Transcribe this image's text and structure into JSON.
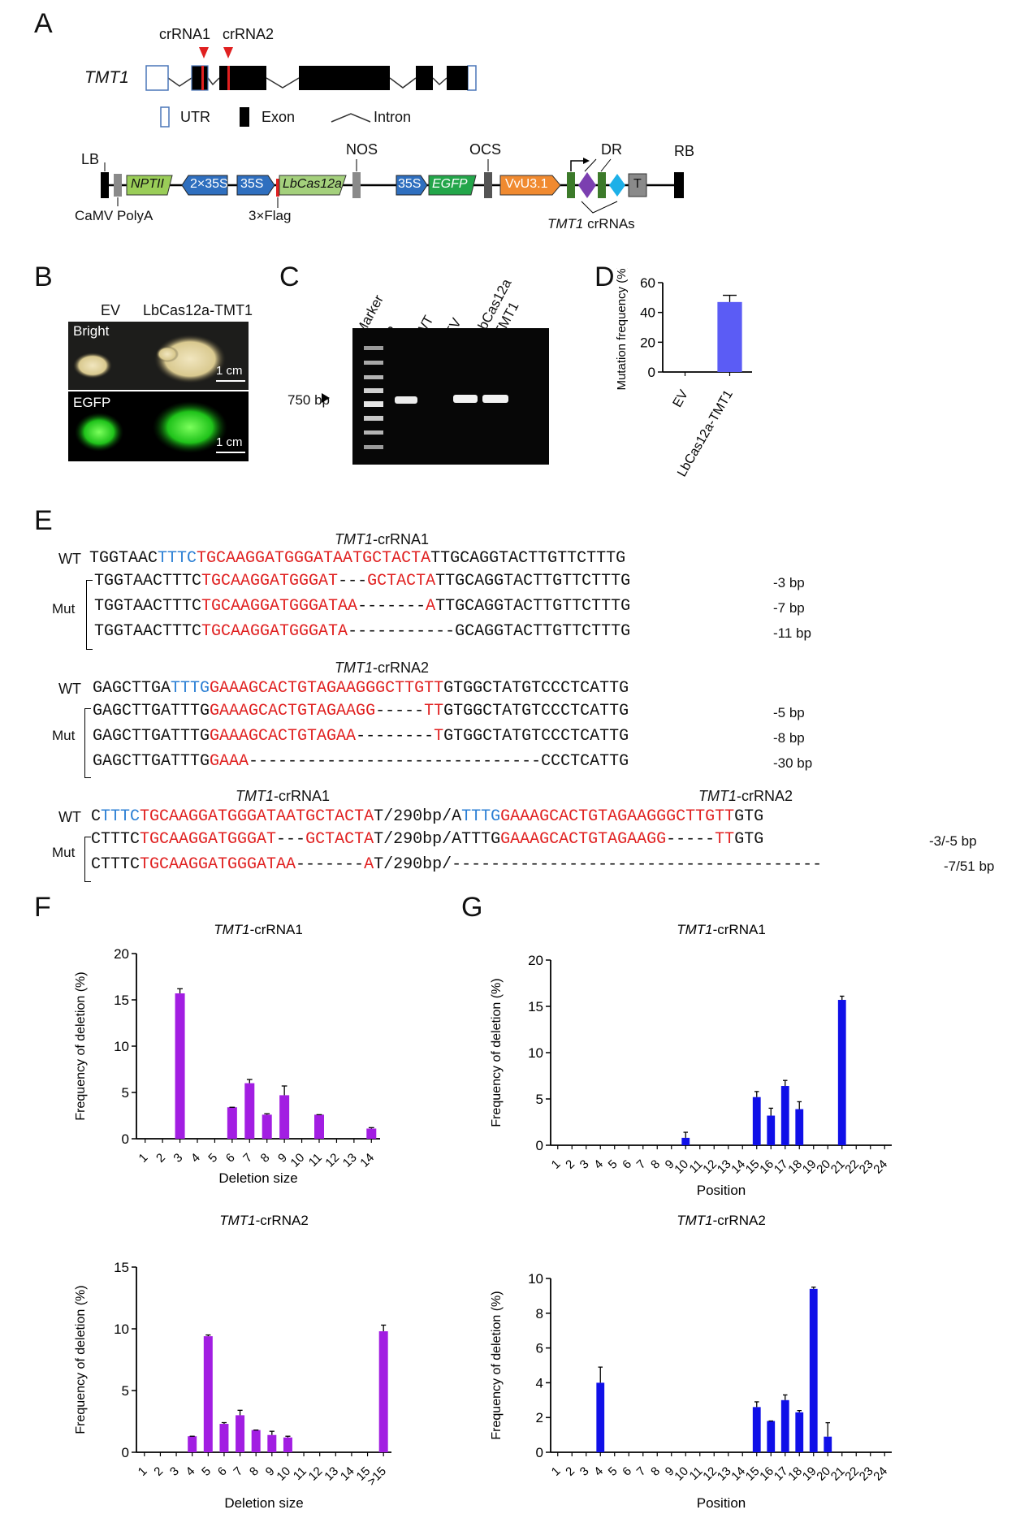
{
  "panels": [
    "A",
    "B",
    "C",
    "D",
    "E",
    "F",
    "G"
  ],
  "panelA": {
    "gene": "TMT1",
    "cr1": "crRNA1",
    "cr2": "crRNA2",
    "legend": {
      "utr": "UTR",
      "exon": "Exon",
      "intron": "Intron"
    },
    "construct": {
      "lb": "LB",
      "rb": "RB",
      "nos": "NOS",
      "ocs": "OCS",
      "dr": "DR",
      "nptii": "NPTII",
      "p2x35s": "2×35S",
      "p35s_a": "35S",
      "cas": "LbCas12a",
      "p35s_b": "35S",
      "egfp": "EGFP",
      "vvu": "VvU3.1",
      "t": "T",
      "camv": "CaMV PolyA",
      "flag": "3×Flag",
      "crrnas_gene": "TMT1",
      "crrnas": "crRNAs"
    }
  },
  "panelB": {
    "ev": "EV",
    "cas": "LbCas12a-TMT1",
    "bright": "Bright",
    "egfp": "EGFP",
    "scale": "1 cm"
  },
  "panelC": {
    "lanes": [
      "Marker",
      "P",
      "WT",
      "EV",
      "LbCas12a",
      "-TMT1"
    ],
    "size": "750 bp"
  },
  "panelD": {
    "chart_data": {
      "type": "bar",
      "categories": [
        "EV",
        "LbCas12a-TMT1"
      ],
      "values": [
        0,
        47
      ],
      "errors": [
        0,
        4.5
      ],
      "ylabel": "Mutation frequency (%)",
      "ylim": [
        0,
        60
      ],
      "yticks": [
        0,
        20,
        40,
        60
      ],
      "color": "#5b5cf5"
    }
  },
  "panelE": {
    "wt": "WT",
    "mut": "Mut",
    "block1": {
      "title_gene": "TMT1",
      "title_rna": "-crRNA1",
      "wt_seq": [
        [
          "k",
          "TGGTAAC"
        ],
        [
          "b",
          "TTTC"
        ],
        [
          "r",
          "TGCAAGGATGGGATAATGCTACTA"
        ],
        [
          "k",
          "TTGCAGGTACTTGTTCTTTG"
        ]
      ],
      "muts": [
        {
          "seq": [
            [
              "k",
              "TGGTAACTTTC"
            ],
            [
              "r",
              "TGCAAGGATGGGAT"
            ],
            [
              "k",
              "---"
            ],
            [
              "r",
              "GCTACTA"
            ],
            [
              "k",
              "TTGCAGGTACTTGTTCTTTG"
            ]
          ],
          "note": "-3 bp"
        },
        {
          "seq": [
            [
              "k",
              "TGGTAACTTTC"
            ],
            [
              "r",
              "TGCAAGGATGGGATAA"
            ],
            [
              "k",
              "-------"
            ],
            [
              "r",
              "A"
            ],
            [
              "k",
              "TTGCAGGTACTTGTTCTTTG"
            ]
          ],
          "note": "-7 bp"
        },
        {
          "seq": [
            [
              "k",
              "TGGTAACTTTC"
            ],
            [
              "r",
              "TGCAAGGATGGGATA"
            ],
            [
              "k",
              "-----------GCAGGTACTTGTTCTTTG"
            ]
          ],
          "note": "-11 bp"
        }
      ]
    },
    "block2": {
      "title_gene": "TMT1",
      "title_rna": "-crRNA2",
      "wt_seq": [
        [
          "k",
          "GAGCTTGA"
        ],
        [
          "b",
          "TTTG"
        ],
        [
          "r",
          "GAAAGCACTGTAGAAGGGCTTGTT"
        ],
        [
          "k",
          "GTGGCTATGTCCCTCATTG"
        ]
      ],
      "muts": [
        {
          "seq": [
            [
              "k",
              "GAGCTTGATTTG"
            ],
            [
              "r",
              "GAAAGCACTGTAGAAGG"
            ],
            [
              "k",
              "-----"
            ],
            [
              "r",
              "TT"
            ],
            [
              "k",
              "GTGGCTATGTCCCTCATTG"
            ]
          ],
          "note": "-5 bp"
        },
        {
          "seq": [
            [
              "k",
              "GAGCTTGATTTG"
            ],
            [
              "r",
              "GAAAGCACTGTAGAA"
            ],
            [
              "k",
              "--------"
            ],
            [
              "r",
              "T"
            ],
            [
              "k",
              "GTGGCTATGTCCCTCATTG"
            ]
          ],
          "note": "-8 bp"
        },
        {
          "seq": [
            [
              "k",
              "GAGCTTGATTTG"
            ],
            [
              "r",
              "GAAA"
            ],
            [
              "k",
              "------------------------------CCCTCATTG"
            ]
          ],
          "note": "-30 bp"
        }
      ]
    },
    "block3": {
      "title1_gene": "TMT1",
      "title1_rna": "-crRNA1",
      "title2_gene": "TMT1",
      "title2_rna": "-crRNA2",
      "wt_seq": [
        [
          "k",
          "C"
        ],
        [
          "b",
          "TTTC"
        ],
        [
          "r",
          "TGCAAGGATGGGATAATGCTACTA"
        ],
        [
          "k",
          "T/290bp/A"
        ],
        [
          "b",
          "TTTG"
        ],
        [
          "r",
          "GAAAGCACTGTAGAAGGGCTTGTT"
        ],
        [
          "k",
          "GTG"
        ]
      ],
      "muts": [
        {
          "seq": [
            [
              "k",
              "CTTTC"
            ],
            [
              "r",
              "TGCAAGGATGGGAT"
            ],
            [
              "k",
              "---"
            ],
            [
              "r",
              "GCTACTA"
            ],
            [
              "k",
              "T/290bp/ATTTG"
            ],
            [
              "r",
              "GAAAGCACTGTAGAAGG"
            ],
            [
              "k",
              "-----"
            ],
            [
              "r",
              "TT"
            ],
            [
              "k",
              "GTG"
            ]
          ],
          "note": "-3/-5 bp"
        },
        {
          "seq": [
            [
              "k",
              "CTTTC"
            ],
            [
              "r",
              "TGCAAGGATGGGATAA"
            ],
            [
              "k",
              "-------"
            ],
            [
              "r",
              "A"
            ],
            [
              "k",
              "T/290bp/--------------------------------------"
            ]
          ],
          "note": "-7/51 bp"
        }
      ]
    }
  },
  "panelF": {
    "chart_data": [
      {
        "type": "bar",
        "title_gene": "TMT1",
        "title_rna": "-crRNA1",
        "categories": [
          "1",
          "2",
          "3",
          "4",
          "5",
          "6",
          "7",
          "8",
          "9",
          "10",
          "11",
          "12",
          "13",
          "14"
        ],
        "values": [
          0,
          0,
          15.7,
          0,
          0,
          3.4,
          6,
          2.6,
          4.7,
          0,
          2.6,
          0,
          0,
          1.1
        ],
        "errors": [
          0,
          0,
          0.5,
          0,
          0,
          0,
          0.4,
          0.1,
          1,
          0,
          0,
          0,
          0,
          0.1
        ],
        "xlabel": "Deletion size",
        "ylabel": "Frequency of deletion (%)",
        "ylim": [
          0,
          20
        ],
        "yticks": [
          0,
          5,
          10,
          15,
          20
        ],
        "color": "#a21ee2"
      },
      {
        "type": "bar",
        "title_gene": "TMT1",
        "title_rna": "-crRNA2",
        "categories": [
          "1",
          "2",
          "3",
          "4",
          "5",
          "6",
          "7",
          "8",
          "9",
          "10",
          "11",
          "12",
          "13",
          "14",
          "15",
          ">15"
        ],
        "values": [
          0,
          0,
          0,
          1.3,
          9.4,
          2.3,
          3,
          1.8,
          1.4,
          1.2,
          0,
          0,
          0,
          0,
          0,
          9.8
        ],
        "errors": [
          0,
          0,
          0,
          0,
          0.1,
          0.1,
          0.4,
          0,
          0.3,
          0.1,
          0,
          0,
          0,
          0,
          0,
          0.5
        ],
        "xlabel": "Deletion size",
        "ylabel": "Frequency of deletion (%)",
        "ylim": [
          0,
          15
        ],
        "yticks": [
          0,
          5,
          10,
          15
        ],
        "color": "#a21ee2"
      }
    ]
  },
  "panelG": {
    "chart_data": [
      {
        "type": "bar",
        "title_gene": "TMT1",
        "title_rna": "-crRNA1",
        "categories": [
          "1",
          "2",
          "3",
          "4",
          "5",
          "6",
          "7",
          "8",
          "9",
          "10",
          "11",
          "12",
          "13",
          "14",
          "15",
          "16",
          "17",
          "18",
          "19",
          "20",
          "21",
          "22",
          "23",
          "24"
        ],
        "values": [
          0,
          0,
          0,
          0,
          0,
          0,
          0,
          0,
          0,
          0.8,
          0,
          0,
          0,
          0,
          5.2,
          3.2,
          6.4,
          3.9,
          0,
          0,
          15.7,
          0,
          0,
          0
        ],
        "errors": [
          0,
          0,
          0,
          0,
          0,
          0,
          0,
          0,
          0,
          0.6,
          0,
          0,
          0,
          0,
          0.6,
          0.8,
          0.6,
          0.8,
          0,
          0,
          0.4,
          0,
          0,
          0
        ],
        "xlabel": "Position",
        "ylabel": "Frequency of deletion (%)",
        "ylim": [
          0,
          20
        ],
        "yticks": [
          0,
          5,
          10,
          15,
          20
        ],
        "color": "#1010e8"
      },
      {
        "type": "bar",
        "title_gene": "TMT1",
        "title_rna": "-crRNA2",
        "categories": [
          "1",
          "2",
          "3",
          "4",
          "5",
          "6",
          "7",
          "8",
          "9",
          "10",
          "11",
          "12",
          "13",
          "14",
          "15",
          "16",
          "17",
          "18",
          "19",
          "20",
          "21",
          "22",
          "23",
          "24"
        ],
        "values": [
          0,
          0,
          0,
          4,
          0,
          0,
          0,
          0,
          0,
          0,
          0,
          0,
          0,
          0,
          2.6,
          1.8,
          3,
          2.3,
          9.4,
          0.9,
          0,
          0,
          0,
          0
        ],
        "errors": [
          0,
          0,
          0,
          0.9,
          0,
          0,
          0,
          0,
          0,
          0,
          0,
          0,
          0,
          0,
          0.3,
          0,
          0.3,
          0.1,
          0.1,
          0.8,
          0,
          0,
          0,
          0
        ],
        "xlabel": "Position",
        "ylabel": "Frequency of deletion (%)",
        "ylim": [
          0,
          10
        ],
        "yticks": [
          0,
          2,
          4,
          6,
          8,
          10
        ],
        "color": "#1010e8"
      }
    ]
  }
}
